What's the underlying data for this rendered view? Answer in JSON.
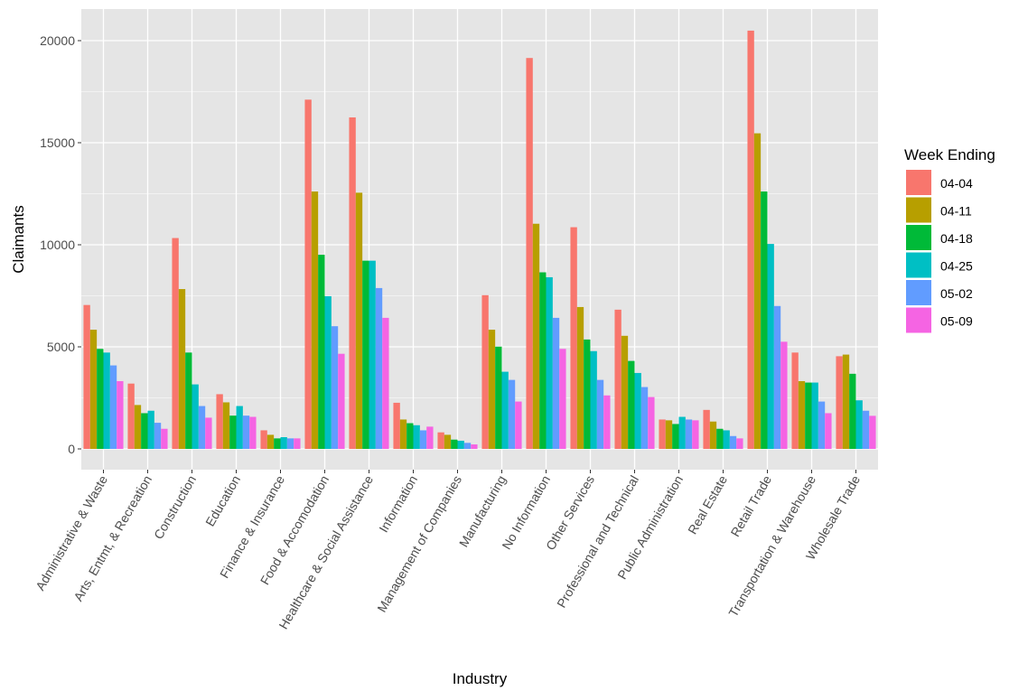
{
  "chart_data": {
    "type": "bar",
    "title": "",
    "xlabel": "Industry",
    "ylabel": "Claimants",
    "ylim": [
      -1000,
      21000
    ],
    "yticks": [
      0,
      5000,
      10000,
      15000,
      20000
    ],
    "grid": true,
    "legend": {
      "title": "Week Ending",
      "placement": "right"
    },
    "categories": [
      "Administrative & Waste",
      "Arts, Entmt, & Recreation",
      "Construction",
      "Education",
      "Finance & Insurance",
      "Food & Accomodation",
      "Healthcare & Social Assistance",
      "Information",
      "Management of Companies",
      "Manufacturing",
      "No Information",
      "Other Services",
      "Professional and Technical",
      "Public Administration",
      "Real Estate",
      "Retail Trade",
      "Transportation & Warehouse",
      "Wholesale Trade"
    ],
    "series": [
      {
        "name": "04-04",
        "color": "#F8766D",
        "values": [
          7050,
          3200,
          10330,
          2680,
          910,
          17110,
          16240,
          2260,
          810,
          7530,
          19150,
          10860,
          6820,
          1440,
          1910,
          20490,
          4720,
          4540
        ]
      },
      {
        "name": "04-11",
        "color": "#B79F00",
        "values": [
          5840,
          2150,
          7830,
          2280,
          690,
          12610,
          12550,
          1440,
          690,
          5840,
          11030,
          6950,
          5540,
          1400,
          1340,
          15460,
          3320,
          4620
        ]
      },
      {
        "name": "04-18",
        "color": "#00BA38",
        "values": [
          4900,
          1750,
          4720,
          1630,
          515,
          9510,
          9220,
          1260,
          455,
          5010,
          8650,
          5360,
          4310,
          1220,
          985,
          12610,
          3250,
          3680
        ]
      },
      {
        "name": "04-25",
        "color": "#00BFC4",
        "values": [
          4720,
          1870,
          3160,
          2100,
          575,
          7480,
          9220,
          1160,
          400,
          3780,
          8410,
          4790,
          3720,
          1570,
          910,
          10040,
          3250,
          2380
        ]
      },
      {
        "name": "05-02",
        "color": "#619CFF",
        "values": [
          4090,
          1280,
          2100,
          1630,
          515,
          6010,
          7880,
          910,
          295,
          3380,
          6420,
          3380,
          3030,
          1440,
          630,
          7000,
          2320,
          1870
        ]
      },
      {
        "name": "05-09",
        "color": "#F564E3",
        "values": [
          3320,
          985,
          1530,
          1570,
          515,
          4660,
          6420,
          1090,
          220,
          2320,
          4900,
          2620,
          2540,
          1400,
          515,
          5250,
          1750,
          1620
        ]
      }
    ]
  }
}
